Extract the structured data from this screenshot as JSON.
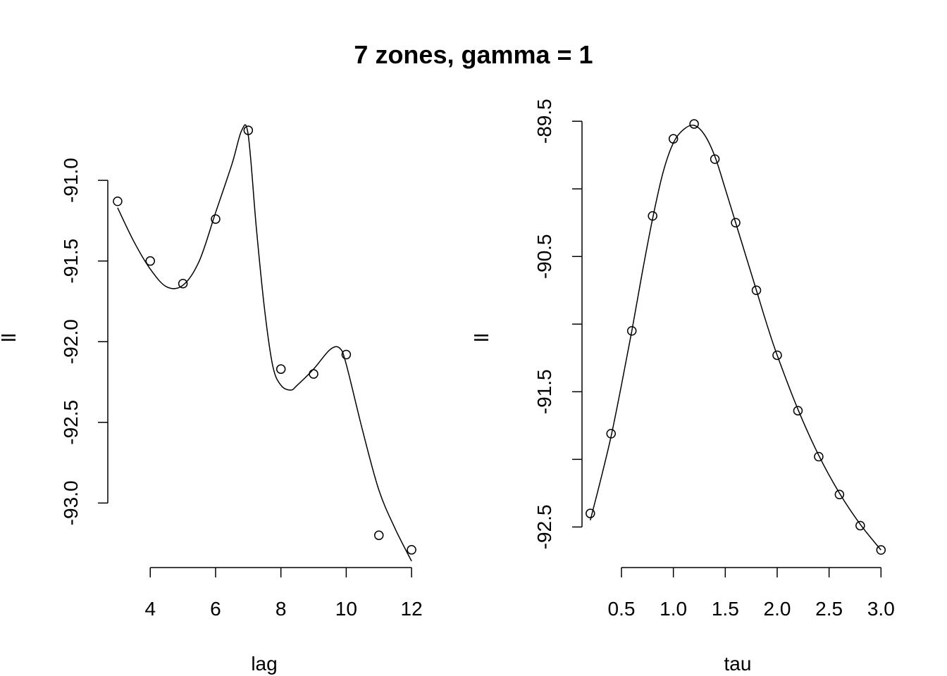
{
  "title": "7 zones, gamma = 1",
  "chart_data": [
    {
      "type": "scatter",
      "xlabel": "lag",
      "ylabel": "ll",
      "xlim": [
        2.7,
        12.3
      ],
      "ylim": [
        -93.4,
        -90.55
      ],
      "x_ticks": [
        4,
        6,
        8,
        10,
        12
      ],
      "y_ticks": [
        -93.0,
        -92.5,
        -92.0,
        -91.5,
        -91.0
      ],
      "x_tick_labels": [
        "4",
        "6",
        "8",
        "10",
        "12"
      ],
      "y_tick_labels": [
        "-93.0",
        "-92.5",
        "-92.0",
        "-91.5",
        "-91.0"
      ],
      "points": {
        "x": [
          3,
          4,
          5,
          6,
          7,
          8,
          9,
          10,
          11,
          12
        ],
        "y": [
          -91.13,
          -91.5,
          -91.64,
          -91.24,
          -90.69,
          -92.17,
          -92.2,
          -92.08,
          -93.2,
          -93.29
        ]
      },
      "smooth_curve": {
        "x": [
          3,
          3.5,
          4,
          4.5,
          5,
          5.5,
          6,
          6.5,
          6.8,
          7,
          7.25,
          7.5,
          7.75,
          8,
          8.3,
          8.5,
          9,
          9.5,
          9.8,
          10,
          10.5,
          11,
          11.5,
          12
        ],
        "y": [
          -91.17,
          -91.38,
          -91.55,
          -91.66,
          -91.65,
          -91.5,
          -91.2,
          -90.9,
          -90.69,
          -90.72,
          -91.3,
          -91.8,
          -92.15,
          -92.27,
          -92.3,
          -92.27,
          -92.17,
          -92.05,
          -92.04,
          -92.14,
          -92.55,
          -92.92,
          -93.16,
          -93.36
        ]
      }
    },
    {
      "type": "scatter",
      "xlabel": "tau",
      "ylabel": "ll",
      "xlim": [
        0.12,
        3.12
      ],
      "ylim": [
        -92.8,
        -89.4
      ],
      "x_ticks": [
        0.5,
        1.0,
        1.5,
        2.0,
        2.5,
        3.0
      ],
      "y_ticks": [
        -92.5,
        -92.0,
        -91.5,
        -91.0,
        -90.5,
        -90.0,
        -89.5
      ],
      "x_tick_labels": [
        "0.5",
        "1.0",
        "1.5",
        "2.0",
        "2.5",
        "3.0"
      ],
      "y_tick_labels": [
        "-92.5",
        "",
        "-91.5",
        "",
        "-90.5",
        "",
        "-89.5"
      ],
      "points": {
        "x": [
          0.2,
          0.4,
          0.6,
          0.8,
          1.0,
          1.2,
          1.4,
          1.6,
          1.8,
          2.0,
          2.2,
          2.4,
          2.6,
          2.8,
          3.0
        ],
        "y": [
          -92.4,
          -91.81,
          -91.05,
          -90.2,
          -89.63,
          -89.52,
          -89.78,
          -90.25,
          -90.75,
          -91.23,
          -91.64,
          -91.98,
          -92.26,
          -92.49,
          -92.67
        ]
      },
      "smooth_curve": {
        "x": [
          0.2,
          0.3,
          0.4,
          0.5,
          0.6,
          0.7,
          0.8,
          0.9,
          1.0,
          1.1,
          1.2,
          1.3,
          1.4,
          1.5,
          1.6,
          1.7,
          1.8,
          1.9,
          2.0,
          2.2,
          2.4,
          2.6,
          2.8,
          3.0
        ],
        "y": [
          -92.45,
          -92.15,
          -91.83,
          -91.45,
          -91.05,
          -90.62,
          -90.22,
          -89.88,
          -89.66,
          -89.56,
          -89.53,
          -89.6,
          -89.76,
          -90.0,
          -90.25,
          -90.5,
          -90.75,
          -91.0,
          -91.23,
          -91.63,
          -91.97,
          -92.25,
          -92.48,
          -92.67
        ]
      }
    }
  ]
}
